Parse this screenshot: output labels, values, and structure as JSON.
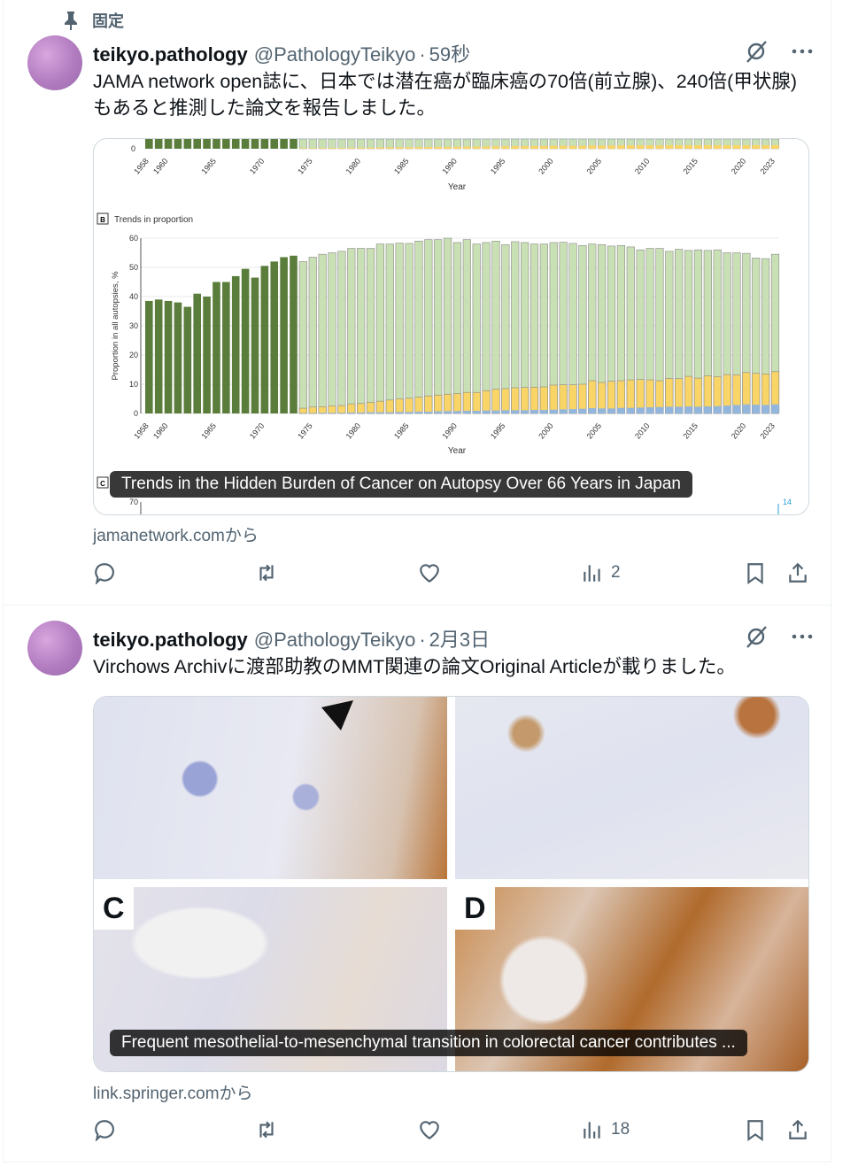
{
  "pinned_label": "固定",
  "tweets": [
    {
      "name": "teikyo.pathology",
      "handle": "@PathologyTeikyo",
      "time": "59秒",
      "text": "JAMA network open誌に、日本では潜在癌が臨床癌の70倍(前立腺)、240倍(甲状腺)もあると推測した論文を報告しました。",
      "card_caption": "Trends in the Hidden Burden of Cancer on Autopsy Over 66 Years in Japan",
      "source": "jamanetwork.comから",
      "views": "2"
    },
    {
      "name": "teikyo.pathology",
      "handle": "@PathologyTeikyo",
      "time": "2月3日",
      "text": "Virchows Archivに渡部助教のMMT関連の論文Original Articleが載りました。",
      "card_caption": "Frequent mesothelial-to-mesenchymal transition in colorectal cancer contributes ...",
      "source": "link.springer.comから",
      "views": "18",
      "panel_labels": [
        "C",
        "D"
      ]
    }
  ],
  "chart_data": {
    "type": "bar",
    "panel_b_label": "B",
    "panel_b_title": "Trends in proportion",
    "panel_c_label": "C",
    "panel_c_first_tick": "70",
    "panel_c_right_label": "14",
    "xlabel": "Year",
    "ylabel": "Proportion in all autopsies, %",
    "ylim": [
      0,
      60
    ],
    "yticks": [
      "0",
      "10",
      "20",
      "30",
      "40",
      "50",
      "60"
    ],
    "xticks": [
      "1958",
      "1960",
      "1965",
      "1970",
      "1975",
      "1980",
      "1985",
      "1990",
      "1995",
      "2000",
      "2005",
      "2010",
      "2015",
      "2020",
      "2023"
    ],
    "years": [
      1958,
      2023
    ],
    "colors": {
      "early": "#5a7d3c",
      "light": "#c9dfb4",
      "yellow": "#f9d466",
      "blue": "#93b6dc"
    },
    "early_values": [
      38.5,
      39,
      38.5,
      38,
      36.5,
      41,
      40,
      45,
      45,
      47,
      49.5,
      46.5,
      50.5,
      52,
      53.5,
      54
    ],
    "total_values": [
      52,
      53.5,
      54.5,
      55,
      55.5,
      56.5,
      56.5,
      56.5,
      58,
      58,
      58.3,
      58.2,
      59,
      59.5,
      59.5,
      60,
      58.5,
      59.5,
      58,
      58.5,
      59,
      57.8,
      58.8,
      58.5,
      58,
      58,
      58.5,
      58.6,
      58.2,
      57.5,
      58,
      57.8,
      57.3,
      57.5,
      57,
      56,
      56.5,
      56.5,
      55.5,
      56.2,
      55.8,
      56,
      55.8,
      56,
      55,
      55,
      54.8,
      53.2,
      53,
      54.5
    ],
    "yellow_top_values": [
      1.8,
      2.2,
      2.3,
      2.6,
      2.7,
      3.3,
      3.4,
      3.8,
      4.2,
      4.6,
      5,
      5.2,
      5.6,
      6,
      6.3,
      6.6,
      6.8,
      7.2,
      7.2,
      7.8,
      8.3,
      8.5,
      8.8,
      8.9,
      9,
      9.1,
      9.7,
      9.8,
      9.8,
      10,
      11.2,
      10.6,
      11,
      11.2,
      11.5,
      11.6,
      11.5,
      11.2,
      12,
      11.9,
      12.7,
      12.1,
      12.9,
      12.6,
      13.3,
      13.2,
      14,
      13.7,
      13.5,
      14.3
    ],
    "blue_values": [
      0.1,
      0.1,
      0.2,
      0.2,
      0.2,
      0.3,
      0.3,
      0.4,
      0.4,
      0.4,
      0.5,
      0.5,
      0.6,
      0.6,
      0.7,
      0.8,
      0.8,
      0.9,
      0.9,
      1.0,
      1.0,
      1.1,
      1.1,
      1.1,
      1.2,
      1.2,
      1.3,
      1.4,
      1.5,
      1.6,
      1.8,
      1.7,
      1.7,
      1.9,
      1.9,
      2.0,
      2.1,
      2.2,
      2.3,
      2.3,
      2.4,
      2.3,
      2.4,
      2.5,
      2.7,
      2.9,
      3.1,
      3.0,
      2.9,
      3.1
    ]
  }
}
